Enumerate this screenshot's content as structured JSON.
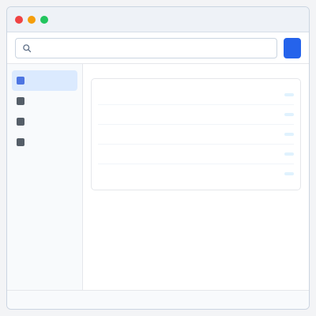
{
  "window": {
    "title": ""
  },
  "toolbar": {
    "search_placeholder": "",
    "search_value": "",
    "primary_action_label": ""
  },
  "sidebar": {
    "items": [
      {
        "label": ""
      },
      {
        "label": ""
      },
      {
        "label": ""
      },
      {
        "label": ""
      }
    ]
  },
  "main": {
    "title": "",
    "rows": [
      {
        "name": "",
        "status": ""
      },
      {
        "name": "",
        "status": ""
      },
      {
        "name": "",
        "status": ""
      },
      {
        "name": "",
        "status": ""
      },
      {
        "name": "",
        "status": ""
      }
    ]
  },
  "statusbar": {
    "left_text": "",
    "right_text": ""
  },
  "colors": {
    "accent": "#2563eb",
    "active_background": "#dbeafe",
    "badge_background": "#e0f2fe"
  },
  "icons": {
    "search": "search-icon",
    "navigation": "nav-icon"
  }
}
